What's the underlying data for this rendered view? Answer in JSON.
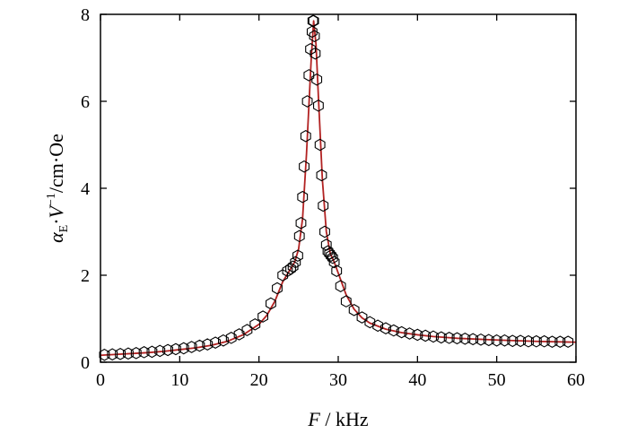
{
  "chart_data": {
    "type": "scatter",
    "xlabel_italic": "F",
    "xlabel_rest": " / kHz",
    "ylabel_alpha": "α",
    "ylabel_sub": "E",
    "ylabel_dot": "·",
    "ylabel_V": "V",
    "ylabel_sup": "−1",
    "ylabel_units": "/cm·Oe",
    "xlim": [
      0,
      60
    ],
    "ylim": [
      0,
      8
    ],
    "x_ticks": [
      0,
      10,
      20,
      30,
      40,
      50,
      60
    ],
    "y_ticks": [
      0,
      2,
      4,
      6,
      8
    ],
    "x_tick_labels": [
      "0",
      "10",
      "20",
      "30",
      "40",
      "50",
      "60"
    ],
    "y_tick_labels": [
      "0",
      "2",
      "4",
      "6",
      "8"
    ],
    "grid": false,
    "legend": "none",
    "series": [
      {
        "type": "scatter",
        "marker": "hexagon-open",
        "color": "#000000",
        "x": [
          0.5,
          1.5,
          2.5,
          3.5,
          4.5,
          5.5,
          6.5,
          7.5,
          8.5,
          9.5,
          10.5,
          11.5,
          12.5,
          13.5,
          14.5,
          15.5,
          16.5,
          17.5,
          18.5,
          19.5,
          20.5,
          21.5,
          22.3,
          23.0,
          23.6,
          24.0,
          24.3,
          24.6,
          24.9,
          25.1,
          25.3,
          25.5,
          25.7,
          25.9,
          26.1,
          26.3,
          26.5,
          26.7,
          26.8,
          26.9,
          27.0,
          27.1,
          27.3,
          27.5,
          27.7,
          27.9,
          28.1,
          28.3,
          28.5,
          28.7,
          28.9,
          29.1,
          29.3,
          29.5,
          29.8,
          30.3,
          31.0,
          32.0,
          33.0,
          34.0,
          35.0,
          36.0,
          37.0,
          38.0,
          39.0,
          40.0,
          41.0,
          42.0,
          43.0,
          44.0,
          45.0,
          46.0,
          47.0,
          48.0,
          49.0,
          50.0,
          51.0,
          52.0,
          53.0,
          54.0,
          55.0,
          56.0,
          57.0,
          58.0,
          59.0
        ],
        "y": [
          0.17,
          0.18,
          0.19,
          0.2,
          0.21,
          0.23,
          0.24,
          0.26,
          0.28,
          0.3,
          0.32,
          0.35,
          0.38,
          0.41,
          0.45,
          0.5,
          0.56,
          0.64,
          0.74,
          0.87,
          1.05,
          1.35,
          1.7,
          2.0,
          2.1,
          2.15,
          2.2,
          2.3,
          2.45,
          2.9,
          3.2,
          3.8,
          4.5,
          5.2,
          6.0,
          6.6,
          7.2,
          7.6,
          7.85,
          7.85,
          7.5,
          7.1,
          6.5,
          5.9,
          5.0,
          4.3,
          3.6,
          3.0,
          2.7,
          2.55,
          2.5,
          2.45,
          2.4,
          2.3,
          2.1,
          1.75,
          1.4,
          1.2,
          1.03,
          0.92,
          0.84,
          0.78,
          0.73,
          0.69,
          0.66,
          0.63,
          0.61,
          0.59,
          0.57,
          0.56,
          0.55,
          0.54,
          0.53,
          0.52,
          0.51,
          0.5,
          0.5,
          0.49,
          0.49,
          0.48,
          0.48,
          0.48,
          0.47,
          0.47,
          0.47
        ]
      },
      {
        "type": "line",
        "style": "fit-curve",
        "color": "#b22222",
        "x": [
          0,
          2,
          4,
          6,
          8,
          10,
          12,
          14,
          16,
          18,
          20,
          21,
          22,
          23,
          24,
          24.5,
          25,
          25.5,
          26,
          26.3,
          26.6,
          26.9,
          27.2,
          27.5,
          28,
          28.5,
          29,
          29.5,
          30,
          31,
          32,
          33,
          34,
          36,
          38,
          40,
          42,
          45,
          50,
          55,
          60
        ],
        "y": [
          0.16,
          0.18,
          0.2,
          0.22,
          0.25,
          0.29,
          0.33,
          0.39,
          0.48,
          0.63,
          0.87,
          1.08,
          1.4,
          1.85,
          2.15,
          2.3,
          2.6,
          3.3,
          4.8,
          5.9,
          7.0,
          7.85,
          7.3,
          6.1,
          4.2,
          3.0,
          2.5,
          2.3,
          2.05,
          1.55,
          1.22,
          1.02,
          0.9,
          0.76,
          0.68,
          0.63,
          0.59,
          0.55,
          0.51,
          0.48,
          0.46
        ]
      }
    ]
  }
}
